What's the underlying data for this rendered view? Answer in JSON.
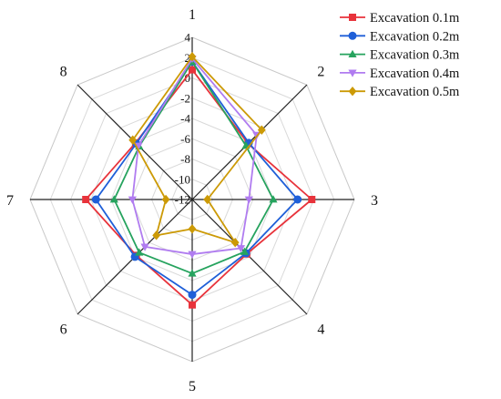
{
  "chart_data": {
    "type": "radar",
    "categories": [
      "1",
      "2",
      "3",
      "4",
      "5",
      "6",
      "7",
      "8"
    ],
    "rlim": [
      -12,
      4
    ],
    "radial_ticks": [
      4,
      2,
      0,
      -2,
      -4,
      -6,
      -8,
      -10,
      -12
    ],
    "radial_tick_labels": [
      "4",
      "2",
      "0",
      "-2",
      "-4",
      "-6",
      "-8",
      "-10",
      "-12"
    ],
    "grid": true,
    "legend_position": "top-right",
    "series": [
      {
        "name": "Excavation 0.1m",
        "color": "#e8333b",
        "marker": "square",
        "values": [
          0.8,
          -4.2,
          -0.2,
          -4.4,
          -1.6,
          -4.2,
          -1.5,
          -4.1
        ]
      },
      {
        "name": "Excavation 0.2m",
        "color": "#1f5fd8",
        "marker": "circle",
        "values": [
          1.6,
          -4.1,
          -1.6,
          -4.5,
          -2.6,
          -4.0,
          -2.5,
          -4.2
        ]
      },
      {
        "name": "Excavation 0.3m",
        "color": "#26a35e",
        "marker": "triangle-up",
        "values": [
          1.6,
          -4.5,
          -4.0,
          -4.7,
          -4.7,
          -4.6,
          -4.3,
          -4.6
        ]
      },
      {
        "name": "Excavation 0.4m",
        "color": "#b07cf0",
        "marker": "triangle-down",
        "values": [
          1.9,
          -3.0,
          -6.4,
          -5.2,
          -6.6,
          -5.4,
          -6.1,
          -4.5
        ]
      },
      {
        "name": "Excavation 0.5m",
        "color": "#cc9a06",
        "marker": "diamond",
        "values": [
          2.1,
          -2.3,
          -10.5,
          -6.0,
          -9.1,
          -7.0,
          -9.4,
          -3.7
        ]
      }
    ]
  }
}
